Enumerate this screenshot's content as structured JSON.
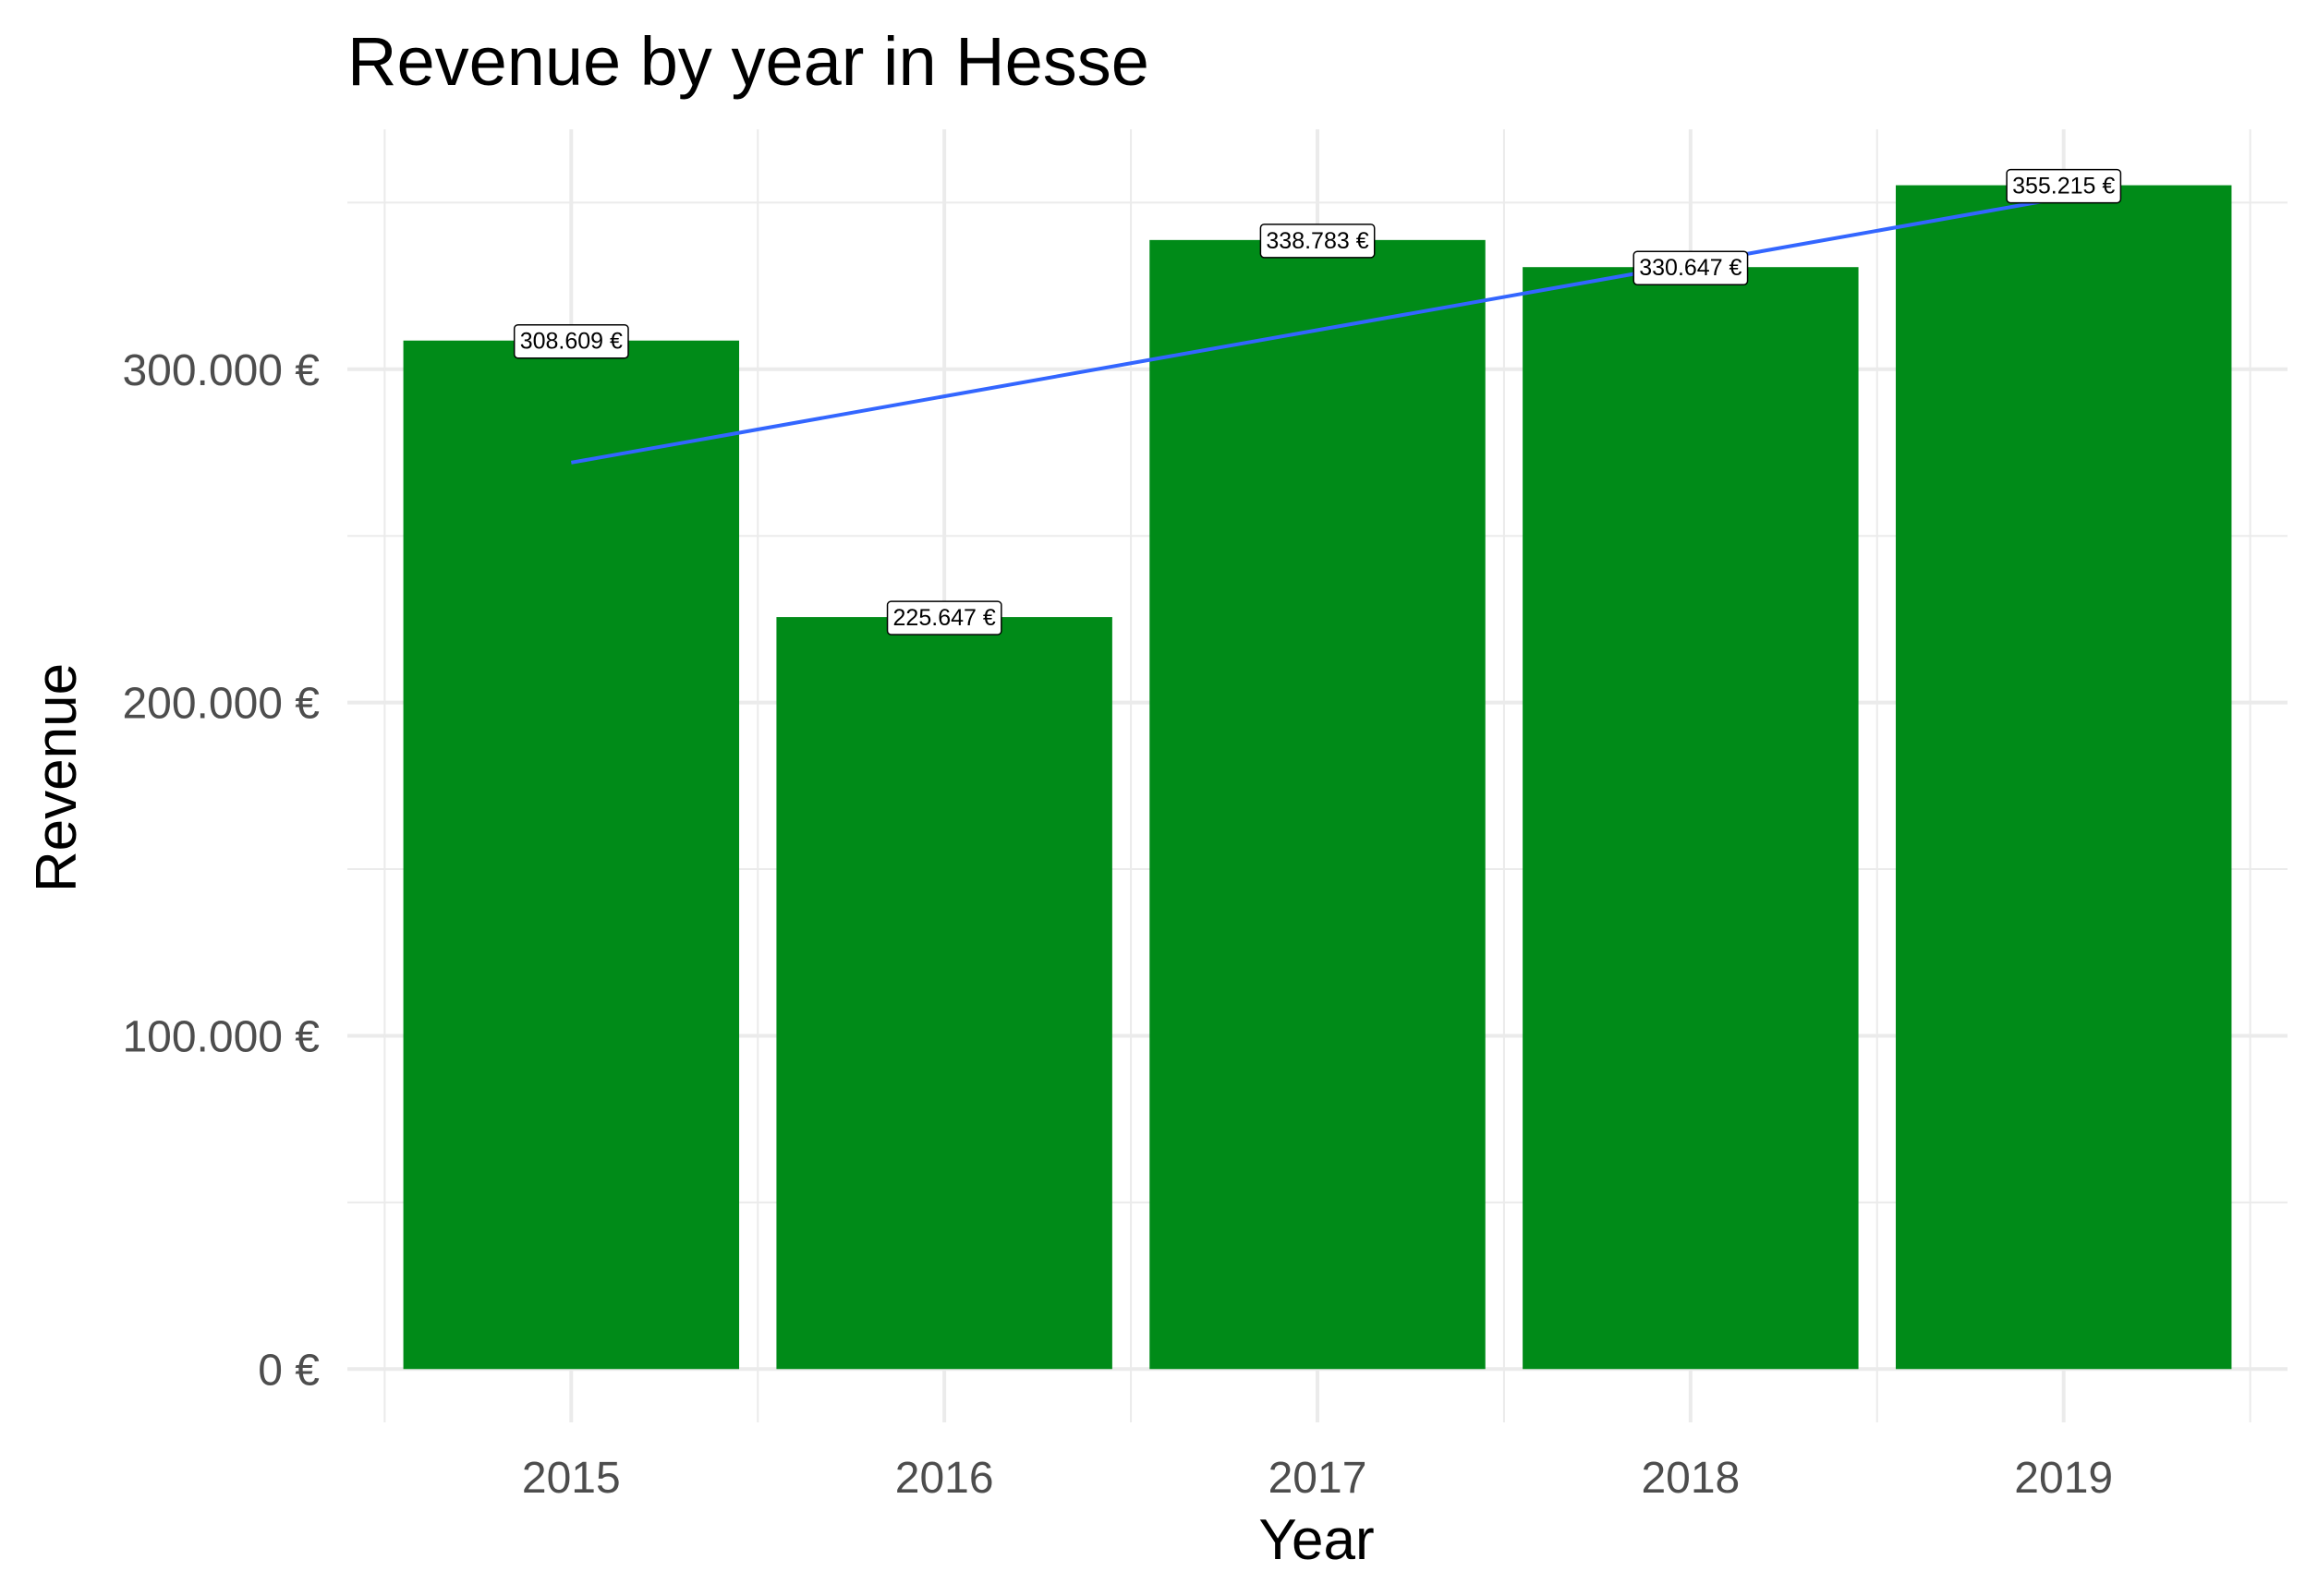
{
  "chart_data": {
    "type": "bar",
    "title": "Revenue by year in Hesse",
    "xlabel": "Year",
    "ylabel": "Revenue",
    "categories": [
      "2015",
      "2016",
      "2017",
      "2018",
      "2019"
    ],
    "values": [
      308609,
      225647,
      338783,
      330647,
      355215
    ],
    "data_labels": [
      "308.609 €",
      "225.647 €",
      "338.783 €",
      "330.647 €",
      "355.215 €"
    ],
    "yticks": [
      0,
      100000,
      200000,
      300000
    ],
    "ytick_labels": [
      "0 €",
      "100.000 €",
      "200.000 €",
      "300.000 €"
    ],
    "ylim": [
      -16000,
      372000
    ],
    "trend_line": {
      "start": 272000,
      "end": 351500
    },
    "grid": true,
    "legend": "none",
    "colors": {
      "bar": "#008b18",
      "trend": "#3366ff",
      "grid": "#ebebeb"
    }
  }
}
